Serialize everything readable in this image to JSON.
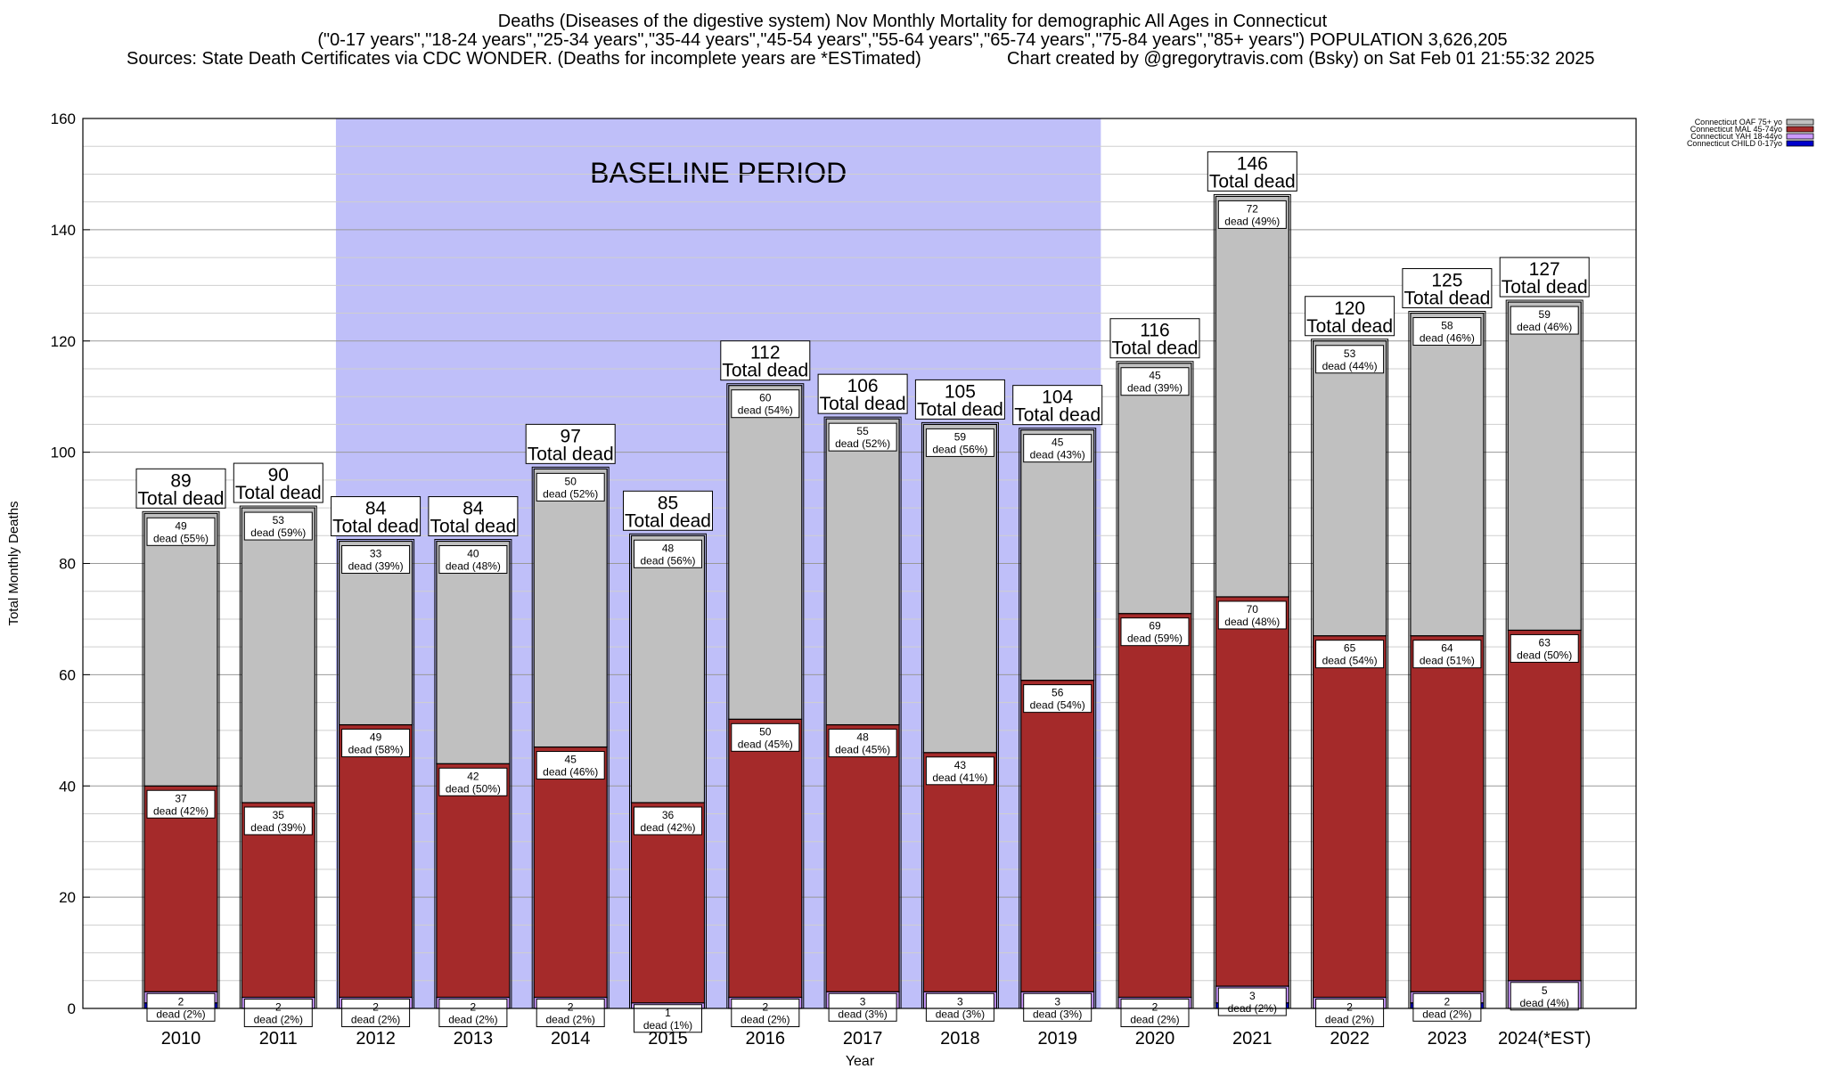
{
  "header": {
    "title": "Deaths (Diseases of the digestive system) Nov Monthly Mortality for demographic All Ages in Connecticut",
    "subtitle": "(\"0-17 years\",\"18-24 years\",\"25-34 years\",\"35-44 years\",\"45-54 years\",\"55-64 years\",\"65-74 years\",\"75-84 years\",\"85+ years\") POPULATION 3,626,205",
    "sources": "Sources: State Death Certificates via CDC WONDER. (Deaths for incomplete years are *ESTimated)",
    "credit": "Chart created by @gregorytravis.com (Bsky) on Sat Feb 01 21:55:32 2025"
  },
  "colors": {
    "oaf": "#c0c0c0",
    "mal": "#a52a2a",
    "yah": "#cc99ff",
    "child": "#0000cc",
    "baseline": "#bfbff9"
  },
  "chart_data": {
    "type": "bar",
    "stacked": true,
    "title": "Deaths (Diseases of the digestive system) Nov Monthly Mortality for demographic All Ages in Connecticut",
    "xlabel": "Year",
    "ylabel": "Total Monthly Deaths",
    "ylim": [
      0,
      160
    ],
    "yticks": [
      0,
      20,
      40,
      60,
      80,
      100,
      120,
      140,
      160
    ],
    "grid": true,
    "legend_position": "top-right",
    "annotation": "BASELINE PERIOD",
    "baseline_range": [
      "2012",
      "2019"
    ],
    "total_suffix": "Total dead",
    "categories": [
      "2010",
      "2011",
      "2012",
      "2013",
      "2014",
      "2015",
      "2016",
      "2017",
      "2018",
      "2019",
      "2020",
      "2021",
      "2022",
      "2023",
      "2024(*EST)"
    ],
    "series": [
      {
        "name": "Connecticut CHILD 0-17yo",
        "key": "child",
        "values": [
          1,
          0,
          0,
          0,
          0,
          0,
          0,
          0,
          0,
          0,
          0,
          1,
          0,
          1,
          0
        ],
        "labels": [
          "",
          "",
          "",
          "",
          "",
          "",
          "",
          "",
          "",
          "",
          "",
          "",
          "",
          "",
          ""
        ]
      },
      {
        "name": "Connecticut YAH 18-44yo",
        "key": "yah",
        "values": [
          2,
          2,
          2,
          2,
          2,
          1,
          2,
          3,
          3,
          3,
          2,
          3,
          2,
          2,
          5
        ],
        "labels": [
          "2\ndead (2%)",
          "2\ndead (2%)",
          "2\ndead (2%)",
          "2\ndead (2%)",
          "2\ndead (2%)",
          "1\ndead (1%)",
          "2\ndead (2%)",
          "3\ndead (3%)",
          "3\ndead (3%)",
          "3\ndead (3%)",
          "2\ndead (2%)",
          "3\ndead (2%)",
          "2\ndead (2%)",
          "2\ndead (2%)",
          "5\ndead (4%)"
        ]
      },
      {
        "name": "Connecticut MAL 45-74yo",
        "key": "mal",
        "values": [
          37,
          35,
          49,
          42,
          45,
          36,
          50,
          48,
          43,
          56,
          69,
          70,
          65,
          64,
          63
        ],
        "labels": [
          "37\ndead (42%)",
          "35\ndead (39%)",
          "49\ndead (58%)",
          "42\ndead (50%)",
          "45\ndead (46%)",
          "36\ndead (42%)",
          "50\ndead (45%)",
          "48\ndead (45%)",
          "43\ndead (41%)",
          "56\ndead (54%)",
          "69\ndead (59%)",
          "70\ndead (48%)",
          "65\ndead (54%)",
          "64\ndead (51%)",
          "63\ndead (50%)"
        ]
      },
      {
        "name": "Connecticut OAF 75+ yo",
        "key": "oaf",
        "values": [
          49,
          53,
          33,
          40,
          50,
          48,
          60,
          55,
          59,
          45,
          45,
          72,
          53,
          58,
          59
        ],
        "labels": [
          "49\ndead (55%)",
          "53\ndead (59%)",
          "33\ndead (39%)",
          "40\ndead (48%)",
          "50\ndead (52%)",
          "48\ndead (56%)",
          "60\ndead (54%)",
          "55\ndead (52%)",
          "59\ndead (56%)",
          "45\ndead (43%)",
          "45\ndead (39%)",
          "72\ndead (49%)",
          "53\ndead (44%)",
          "58\ndead (46%)",
          "59\ndead (46%)"
        ]
      }
    ],
    "totals": [
      89,
      90,
      84,
      84,
      97,
      85,
      112,
      106,
      105,
      104,
      116,
      146,
      120,
      125,
      127
    ]
  }
}
